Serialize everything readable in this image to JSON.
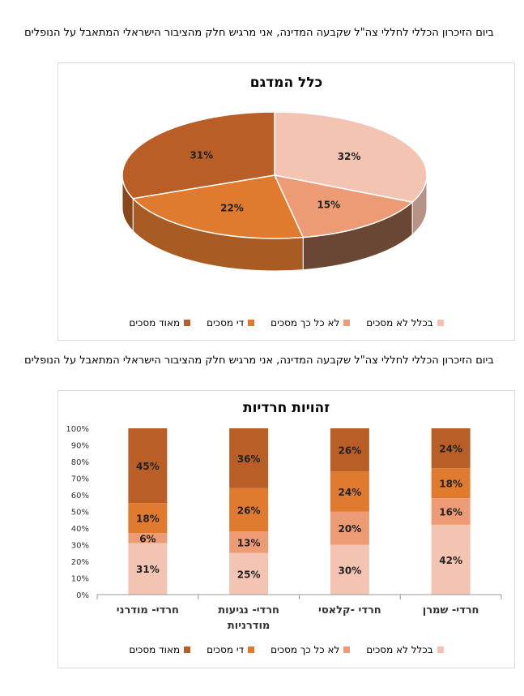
{
  "caption1": "ביום הזיכרון הכללי לחללי צה\"ל שקבעה המדינה, אני מרגיש חלק מהציבור הישראלי המתאבל על הנופלים",
  "caption2": "ביום הזיכרון הכללי לחללי צה\"ל שקבעה המדינה, אני מרגיש חלק מהציבור הישראלי המתאבל על הנופלים",
  "legend": [
    {
      "label": "בכלל לא מסכים",
      "color": "#F3C4B1"
    },
    {
      "label": "לא כל כך מסכים",
      "color": "#EC9B74"
    },
    {
      "label": "די מסכים",
      "color": "#E07A2E"
    },
    {
      "label": "מאוד מסכים",
      "color": "#B85E26"
    }
  ],
  "chart_data": [
    {
      "type": "pie",
      "title": "כלל המדגם",
      "categories": [
        "בכלל לא מסכים",
        "לא כל כך מסכים",
        "די מסכים",
        "מאוד מסכים"
      ],
      "values": [
        32,
        15,
        22,
        31
      ],
      "labels": [
        "32%",
        "15%",
        "22%",
        "31%"
      ],
      "legend_position": "bottom"
    },
    {
      "type": "bar",
      "stacked": "percent",
      "title": "זהויות חרדיות",
      "categories": [
        "חרדי- שמרן",
        "חרדי -קלאסי",
        "חרדי- נגיעות מודרניות",
        "חרדי- מודרני"
      ],
      "series": [
        {
          "name": "בכלל לא מסכים",
          "values": [
            42,
            30,
            25,
            31
          ]
        },
        {
          "name": "לא כל כך מסכים",
          "values": [
            16,
            20,
            13,
            6
          ]
        },
        {
          "name": "די מסכים",
          "values": [
            18,
            24,
            26,
            18
          ]
        },
        {
          "name": "מאוד מסכים",
          "values": [
            24,
            26,
            36,
            45
          ]
        }
      ],
      "ylim": [
        0,
        100
      ],
      "yticks": [
        "0%",
        "10%",
        "20%",
        "30%",
        "40%",
        "50%",
        "60%",
        "70%",
        "80%",
        "90%",
        "100%"
      ],
      "legend_position": "bottom"
    }
  ]
}
